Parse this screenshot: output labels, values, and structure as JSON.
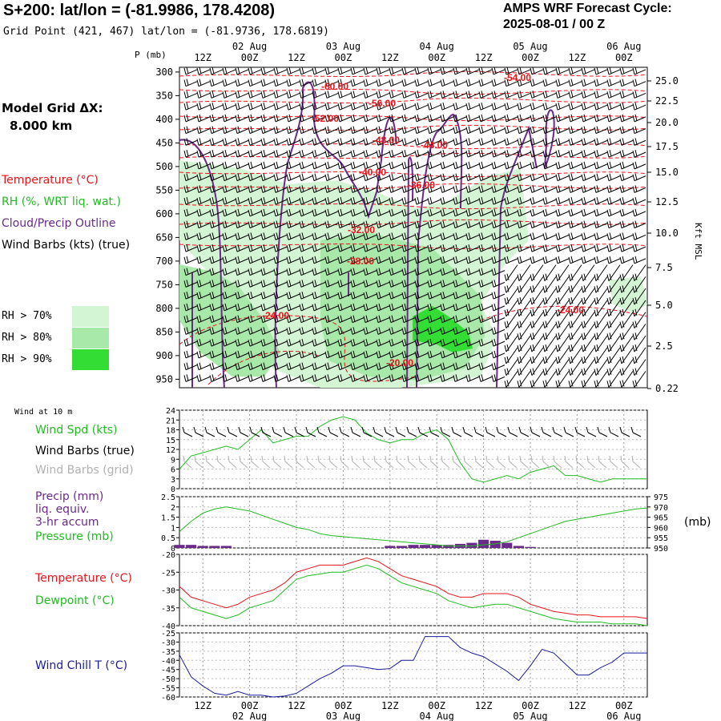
{
  "header": {
    "title": "S+200:  lat/lon = (-81.9986, 178.4208)",
    "subtitle": "Grid Point (421, 467) lat/lon = (-81.9736, 178.6819)",
    "cycle_line1": "AMPS WRF Forecast Cycle:",
    "cycle_line2": "2025-08-01 / 00  Z"
  },
  "legend": {
    "model_grid": "Model Grid ΔX:",
    "grid_dx": "8.000 km",
    "temperature": "Temperature (°C)",
    "rh": "RH (%, WRT liq. wat.)",
    "cloud": "Cloud/Precip Outline",
    "wind_barbs": "Wind Barbs (kts) (true)",
    "rh70": "RH > 70%",
    "rh80": "RH > 80%",
    "rh90": "RH > 90%"
  },
  "colors": {
    "temp": "#e8141c",
    "rh_green": "#22bb22",
    "cloud": "#6a2a8a",
    "rh70": "#d4f5d4",
    "rh80": "#a8e8a8",
    "rh90": "#33dd33",
    "wind_grid": "#b0b0b0",
    "wind_chill": "#1a1aa0"
  },
  "time_axis": {
    "hour_labels": [
      "12Z",
      "00Z",
      "12Z",
      "00Z",
      "12Z",
      "00Z",
      "12Z",
      "00Z",
      "12Z",
      "00Z"
    ],
    "date_labels": [
      "02 Aug",
      "03 Aug",
      "04 Aug",
      "05 Aug",
      "06 Aug"
    ]
  },
  "panels": {
    "cross_section": {
      "p_label": "P (mb)",
      "pressure_ticks": [
        "300",
        "350",
        "400",
        "450",
        "500",
        "550",
        "600",
        "650",
        "700",
        "750",
        "800",
        "850",
        "900",
        "950"
      ],
      "height_ticks": [
        "25.0",
        "22.5",
        "20.0",
        "17.5",
        "15.0",
        "12.5",
        "10.0",
        "7.5",
        "5.0",
        "2.5",
        "0.22"
      ],
      "height_axis_label": "Kft MSL",
      "temp_contour_labels": [
        "-60.00",
        "-56.00",
        "-54.00",
        "-52.00",
        "-48.00",
        "-44.00",
        "-40.00",
        "-36.00",
        "-32.00",
        "-28.00",
        "-24.00",
        "-24.00",
        "-20.00"
      ]
    },
    "wind": {
      "title": "Wind at 10 m",
      "spd_label": "Wind Spd (kts)",
      "barbs_true": "Wind Barbs (true)",
      "barbs_grid": "Wind Barbs (grid)",
      "y_ticks": [
        "24",
        "21",
        "18",
        "15",
        "12",
        "9",
        "6",
        "3",
        "0"
      ]
    },
    "precip": {
      "label1": "Precip (mm)",
      "label2": "liq. equiv.",
      "label3": "3-hr accum",
      "label4": "Pressure (mb)",
      "left_ticks": [
        "2.5",
        "2",
        "1.5",
        "1",
        "0.5",
        "0"
      ],
      "right_ticks": [
        "975",
        "970",
        "965",
        "960",
        "955",
        "950"
      ],
      "right_unit": "(mb)"
    },
    "temp": {
      "temp_label": "Temperature (°C)",
      "dew_label": "Dewpoint (°C)",
      "y_ticks": [
        "-20",
        "-25",
        "-30",
        "-35",
        "-40"
      ]
    },
    "chill": {
      "label": "Wind Chill T (°C)",
      "y_ticks": [
        "-25",
        "-30",
        "-35",
        "-40",
        "-45",
        "-50",
        "-55",
        "-60"
      ]
    }
  },
  "chart_data": [
    {
      "type": "line",
      "title": "Wind at 10 m",
      "ylabel": "Wind Spd (kts)",
      "ylim": [
        0,
        24
      ],
      "x_hours": [
        0,
        3,
        6,
        9,
        12,
        15,
        18,
        21,
        24,
        27,
        30,
        33,
        36,
        39,
        42,
        45,
        48,
        51,
        54,
        57,
        60,
        63,
        66,
        69,
        72,
        75,
        78,
        81,
        84,
        87,
        90,
        93,
        96,
        99,
        102,
        105,
        108,
        111,
        114,
        117,
        120
      ],
      "series": [
        {
          "name": "Wind Spd (kts)",
          "values": [
            6,
            10,
            11,
            12,
            13,
            12,
            15,
            18,
            14,
            15,
            16,
            16,
            19,
            21,
            22,
            21,
            17,
            15,
            14,
            15,
            15,
            17,
            18,
            15,
            8,
            3,
            2,
            3,
            4,
            3,
            5,
            6,
            7,
            4,
            4,
            3,
            2,
            3,
            3,
            3,
            3
          ]
        }
      ]
    },
    {
      "type": "bar",
      "title": "Precip / Pressure",
      "ylabel": "Precip (mm)",
      "ylim": [
        0,
        2.5
      ],
      "x_hours": [
        0,
        3,
        6,
        9,
        12,
        15,
        18,
        21,
        24,
        27,
        30,
        33,
        36,
        39,
        42,
        45,
        48,
        51,
        54,
        57,
        60,
        63,
        66,
        69,
        72,
        75,
        78,
        81,
        84,
        87,
        90,
        93,
        96,
        99,
        102,
        105,
        108,
        111,
        114,
        117,
        120
      ],
      "series": [
        {
          "name": "Precip (mm)",
          "values": [
            0.15,
            0.15,
            0.1,
            0.1,
            0.1,
            0,
            0,
            0,
            0,
            0,
            0,
            0,
            0,
            0,
            0,
            0,
            0,
            0,
            0.1,
            0.1,
            0.15,
            0.15,
            0.15,
            0.15,
            0.2,
            0.25,
            0.4,
            0.35,
            0.25,
            0.1,
            0.05,
            0,
            0,
            0,
            0,
            0,
            0,
            0,
            0,
            0,
            0
          ]
        },
        {
          "name": "Pressure (mb)",
          "values": [
            958,
            963,
            967,
            969,
            970,
            969,
            968,
            966,
            964,
            962,
            960,
            959,
            957,
            956,
            955.5,
            955,
            954.5,
            954,
            953.5,
            953,
            952.5,
            952,
            951.5,
            951,
            951,
            951,
            951.5,
            952,
            953,
            955,
            957,
            959,
            961,
            963,
            964,
            965,
            966,
            967,
            968,
            969,
            969.5
          ]
        }
      ]
    },
    {
      "type": "line",
      "title": "Temperature / Dewpoint",
      "ylabel": "°C",
      "ylim": [
        -40,
        -20
      ],
      "x_hours": [
        0,
        3,
        6,
        9,
        12,
        15,
        18,
        21,
        24,
        27,
        30,
        33,
        36,
        39,
        42,
        45,
        48,
        51,
        54,
        57,
        60,
        63,
        66,
        69,
        72,
        75,
        78,
        81,
        84,
        87,
        90,
        93,
        96,
        99,
        102,
        105,
        108,
        111,
        114,
        117,
        120
      ],
      "series": [
        {
          "name": "Temperature (°C)",
          "values": [
            -29,
            -32,
            -33,
            -34,
            -35,
            -34,
            -32,
            -31,
            -30,
            -28,
            -25,
            -24,
            -23,
            -23,
            -23,
            -22,
            -21,
            -22,
            -24,
            -26,
            -27,
            -28,
            -29,
            -31,
            -32,
            -32,
            -31,
            -31,
            -31,
            -32,
            -34,
            -35,
            -36,
            -36.5,
            -37,
            -37,
            -37.5,
            -37.5,
            -37.5,
            -37.5,
            -38
          ]
        },
        {
          "name": "Dewpoint (°C)",
          "values": [
            -32,
            -35,
            -36,
            -37,
            -38,
            -37,
            -35,
            -34,
            -33,
            -30,
            -27,
            -26,
            -25.5,
            -25,
            -25,
            -24,
            -23,
            -24,
            -26,
            -28,
            -29,
            -30,
            -31,
            -33,
            -34,
            -35,
            -34.5,
            -34,
            -34,
            -35,
            -36,
            -37,
            -38,
            -38.5,
            -39,
            -39,
            -39,
            -39.5,
            -39.5,
            -39.5,
            -40
          ]
        }
      ]
    },
    {
      "type": "line",
      "title": "Wind Chill",
      "ylabel": "Wind Chill T (°C)",
      "ylim": [
        -60,
        -25
      ],
      "x_hours": [
        0,
        3,
        6,
        9,
        12,
        15,
        18,
        21,
        24,
        27,
        30,
        33,
        36,
        39,
        42,
        45,
        48,
        51,
        54,
        57,
        60,
        63,
        66,
        69,
        72,
        75,
        78,
        81,
        84,
        87,
        90,
        93,
        96,
        99,
        102,
        105,
        108,
        111,
        114,
        117,
        120
      ],
      "series": [
        {
          "name": "Wind Chill T (°C)",
          "values": [
            -37,
            -49,
            -54,
            -58,
            -59,
            -57,
            -59,
            -59,
            -60,
            -59.5,
            -58,
            -54,
            -50,
            -47,
            -43,
            -43,
            -44,
            -45,
            -44.5,
            -40,
            -40,
            -27,
            -27,
            -27,
            -33,
            -36,
            -38,
            -42,
            -46,
            -51,
            -43,
            -34,
            -36,
            -42,
            -48,
            -48,
            -44,
            -41,
            -36,
            -36,
            -36
          ]
        }
      ]
    }
  ]
}
